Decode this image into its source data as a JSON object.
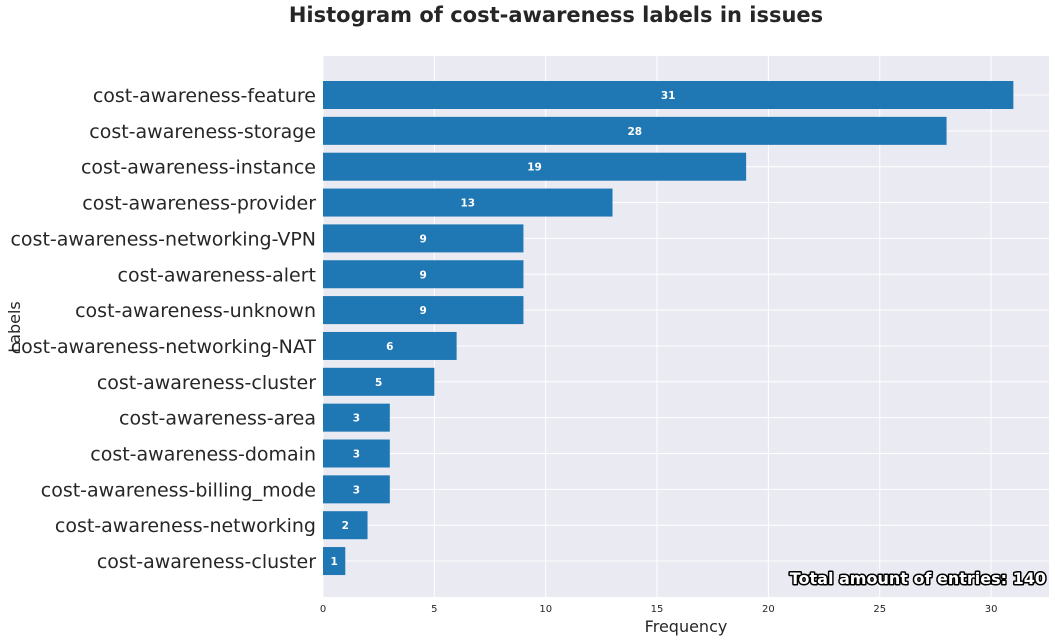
{
  "chart_data": {
    "type": "bar",
    "orientation": "horizontal",
    "title": "Histogram of cost-awareness labels in issues",
    "xlabel": "Frequency",
    "ylabel": "Labels",
    "categories": [
      "cost-awareness-feature",
      "cost-awareness-storage",
      "cost-awareness-instance",
      "cost-awareness-provider",
      "cost-awareness-networking-VPN",
      "cost-awareness-alert",
      "cost-awareness-unknown",
      "cost-awareness-networking-NAT",
      "cost-awareness-cluster",
      "cost-awareness-area",
      "cost-awareness-domain",
      "cost-awareness-billing_mode",
      "cost-awareness-networking",
      "cost-awareness-cluster "
    ],
    "values": [
      31,
      28,
      19,
      13,
      9,
      9,
      9,
      6,
      5,
      3,
      3,
      3,
      2,
      1
    ],
    "xlim": [
      0,
      32.6
    ],
    "xticks": [
      0,
      5,
      10,
      15,
      20,
      25,
      30
    ],
    "grid": true,
    "annotation": "Total amount of entries: 140",
    "colors": {
      "bar": "#1f77b4",
      "background": "#eaeaf2",
      "grid": "#ffffff",
      "text": "#262626"
    }
  }
}
